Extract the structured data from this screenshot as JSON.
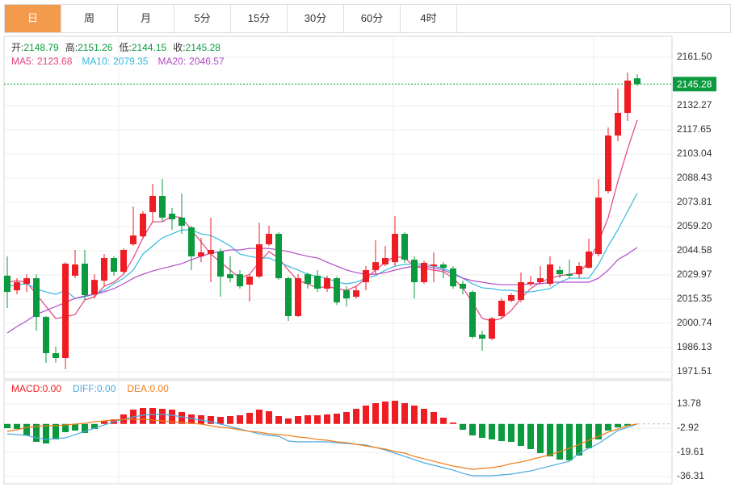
{
  "tabs": {
    "items": [
      "日",
      "周",
      "月",
      "5分",
      "15分",
      "30分",
      "60分",
      "4时"
    ],
    "active": 0
  },
  "chart_data": [
    {
      "type": "candlestick",
      "legend_labels": [
        "开:",
        "高:",
        "低:",
        "收:"
      ],
      "up_color": "#ee1d23",
      "down_color": "#0b9a3e",
      "label_color": "#333333",
      "open": [
        2029.5,
        2020.7,
        2024.6,
        2028.0,
        2004.6,
        1982.7,
        1979.8,
        2029.5,
        2036.8,
        2018.3,
        2026.5,
        2040.2,
        2031.9,
        2048.5,
        2053.3,
        2068.0,
        2077.7,
        2067.0,
        2064.6,
        2058.7,
        2041.2,
        2042.6,
        2044.1,
        2030.4,
        2030.4,
        2024.1,
        2029.0,
        2048.5,
        2054.8,
        2028.0,
        2005.1,
        2030.4,
        2029.5,
        2021.7,
        2028.0,
        2020.7,
        2016.8,
        2025.6,
        2032.9,
        2036.3,
        2037.7,
        2054.8,
        2039.2,
        2025.6,
        2035.3,
        2036.3,
        2033.9,
        2024.6,
        2019.7,
        1993.9,
        1991.5,
        2005.1,
        2014.4,
        2014.9,
        2024.6,
        2025.6,
        2024.6,
        2032.9,
        2030.4,
        2030.4,
        2034.3,
        2042.6,
        2080.6,
        2114.2,
        2127.9,
        2148.79
      ],
      "high": [
        2041.2,
        2028.0,
        2030.4,
        2030.4,
        2005.1,
        1986.6,
        2037.7,
        2045.1,
        2045.1,
        2030.4,
        2042.6,
        2041.2,
        2046.0,
        2071.4,
        2068.4,
        2085.0,
        2087.9,
        2070.4,
        2079.2,
        2059.7,
        2052.4,
        2064.6,
        2046.0,
        2041.2,
        2032.9,
        2030.4,
        2061.6,
        2059.7,
        2055.8,
        2029.0,
        2030.4,
        2031.4,
        2032.9,
        2029.5,
        2029.0,
        2023.1,
        2023.1,
        2035.3,
        2050.9,
        2047.5,
        2065.5,
        2055.8,
        2041.2,
        2038.7,
        2043.6,
        2037.7,
        2035.3,
        2026.5,
        2020.7,
        1996.3,
        2004.6,
        2015.8,
        2018.8,
        2031.4,
        2029.5,
        2035.3,
        2041.2,
        2035.3,
        2039.2,
        2037.7,
        2051.9,
        2087.9,
        2119.1,
        2142.5,
        2152.2,
        2151.26
      ],
      "low": [
        2010.0,
        2018.3,
        2019.7,
        1996.3,
        1976.8,
        1976.8,
        1973.0,
        2028.0,
        2014.9,
        2015.8,
        2023.1,
        2029.5,
        2030.4,
        2047.5,
        2052.4,
        2062.1,
        2062.1,
        2057.2,
        2054.8,
        2032.9,
        2037.7,
        2025.6,
        2016.8,
        2025.6,
        2021.7,
        2013.9,
        2028.0,
        2047.5,
        2027.0,
        2002.2,
        2004.6,
        2021.7,
        2019.7,
        2019.7,
        2011.9,
        2010.9,
        2015.8,
        2020.7,
        2030.4,
        2035.3,
        2035.3,
        2037.3,
        2015.8,
        2024.6,
        2025.6,
        2028.0,
        2021.7,
        2018.3,
        1991.5,
        1984.2,
        1990.5,
        2003.7,
        2013.4,
        2013.4,
        2023.1,
        2024.6,
        2023.1,
        2028.0,
        2028.0,
        2028.0,
        2033.9,
        2041.2,
        2079.2,
        2110.8,
        2123.0,
        2144.15
      ],
      "close": [
        2019.7,
        2025.6,
        2028.0,
        2004.6,
        1982.7,
        1979.8,
        2036.8,
        2036.3,
        2017.8,
        2027.0,
        2040.2,
        2031.9,
        2045.1,
        2053.8,
        2067.0,
        2077.7,
        2064.6,
        2063.6,
        2059.7,
        2041.2,
        2043.6,
        2045.1,
        2029.0,
        2028.0,
        2023.1,
        2029.0,
        2048.5,
        2054.8,
        2028.0,
        2005.1,
        2028.0,
        2024.6,
        2021.7,
        2028.0,
        2013.4,
        2015.8,
        2020.7,
        2032.9,
        2037.7,
        2040.2,
        2054.8,
        2039.2,
        2025.6,
        2037.3,
        2036.3,
        2034.3,
        2023.1,
        2021.7,
        1992.5,
        1991.5,
        2003.7,
        2014.4,
        2017.8,
        2025.6,
        2025.6,
        2028.0,
        2036.3,
        2030.4,
        2029.5,
        2035.3,
        2044.1,
        2076.7,
        2114.2,
        2127.9,
        2147.4,
        2145.28
      ],
      "series": [
        {
          "name": "MA5:",
          "color": "#e5427f",
          "values": [
            2025.6,
            2026.5,
            2025.6,
            2018.3,
            2010.9,
            2003.7,
            2004.6,
            2006.1,
            2014.9,
            2016.8,
            2023.1,
            2025.6,
            2030.4,
            2040.2,
            2052.4,
            2062.1,
            2062.1,
            2065.5,
            2064.6,
            2057.2,
            2049.9,
            2042.6,
            2037.7,
            2032.9,
            2028.0,
            2030.4,
            2037.7,
            2044.1,
            2040.2,
            2032.9,
            2026.5,
            2024.6,
            2022.2,
            2023.1,
            2021.7,
            2020.7,
            2023.1,
            2028.0,
            2032.9,
            2037.7,
            2041.2,
            2040.2,
            2035.3,
            2033.9,
            2032.9,
            2031.9,
            2028.0,
            2022.2,
            2013.4,
            2003.7,
            2002.2,
            2003.7,
            2008.5,
            2015.8,
            2021.7,
            2025.6,
            2028.0,
            2029.5,
            2030.4,
            2031.4,
            2037.7,
            2049.9,
            2064.6,
            2086.5,
            2106.0,
            2123.68
          ]
        },
        {
          "name": "MA10:",
          "color": "#33b9df",
          "values": [
            2023.1,
            2024.1,
            2024.6,
            2021.7,
            2019.7,
            2018.3,
            2020.7,
            2015.8,
            2016.8,
            2018.3,
            2020.7,
            2024.6,
            2028.0,
            2032.9,
            2042.6,
            2047.5,
            2052.4,
            2054.8,
            2057.2,
            2057.2,
            2054.8,
            2053.8,
            2050.9,
            2047.5,
            2042.6,
            2041.2,
            2040.2,
            2040.2,
            2037.7,
            2035.3,
            2032.9,
            2030.4,
            2029.0,
            2028.0,
            2025.6,
            2024.6,
            2025.6,
            2028.0,
            2029.5,
            2032.9,
            2035.3,
            2036.3,
            2036.8,
            2036.3,
            2035.3,
            2033.9,
            2031.4,
            2028.0,
            2024.6,
            2022.2,
            2021.7,
            2020.7,
            2020.7,
            2019.7,
            2019.7,
            2020.7,
            2021.7,
            2025.6,
            2028.0,
            2028.0,
            2028.0,
            2036.3,
            2047.5,
            2057.2,
            2068.4,
            2079.35
          ]
        },
        {
          "name": "MA20:",
          "color": "#b04cc6",
          "values": [
            1994.9,
            1998.8,
            2002.2,
            2006.1,
            2008.5,
            2010.9,
            2013.4,
            2015.8,
            2017.3,
            2018.3,
            2019.7,
            2021.7,
            2024.6,
            2028.0,
            2030.4,
            2032.4,
            2033.9,
            2035.3,
            2036.8,
            2039.2,
            2041.2,
            2043.1,
            2044.1,
            2045.1,
            2045.1,
            2046.0,
            2046.0,
            2046.0,
            2045.1,
            2044.1,
            2042.6,
            2041.2,
            2040.2,
            2037.7,
            2035.3,
            2032.9,
            2031.4,
            2030.4,
            2030.4,
            2031.4,
            2032.9,
            2034.3,
            2035.3,
            2035.3,
            2034.3,
            2032.9,
            2030.4,
            2028.0,
            2026.5,
            2025.6,
            2024.6,
            2024.1,
            2024.1,
            2024.1,
            2024.6,
            2024.6,
            2025.6,
            2025.6,
            2025.6,
            2025.6,
            2025.6,
            2028.0,
            2032.9,
            2039.2,
            2042.6,
            2046.57
          ]
        }
      ],
      "ylim": [
        1967.13,
        2174.17
      ],
      "yticks": [
        {
          "value": 2161.5,
          "label": "2161.50"
        },
        2132.27,
        2117.65,
        2103.04,
        2088.43,
        2073.81,
        {
          "value": 2059.2,
          "label": "2059.20"
        },
        2044.58,
        2029.97,
        2015.35,
        2000.74,
        1986.13,
        1971.51
      ],
      "grid": true,
      "last_price_line": true
    },
    {
      "type": "macd",
      "series": [
        {
          "name": "MACD:",
          "kind": "bar",
          "color": "#ee1d23",
          "down_color": "#0b9a3e",
          "legend_label": "0.00",
          "values": [
            -2.92,
            -3.48,
            -7.93,
            -12.38,
            -13.5,
            -10.71,
            -5.7,
            -4.59,
            -6.26,
            -3.48,
            2.09,
            3.2,
            6.54,
            9.88,
            10.99,
            10.99,
            10.43,
            9.88,
            8.21,
            6.54,
            5.98,
            5.43,
            4.87,
            5.43,
            5.98,
            7.65,
            9.88,
            8.76,
            5.43,
            3.76,
            5.43,
            5.98,
            5.98,
            6.54,
            7.1,
            8.21,
            10.43,
            12.66,
            14.33,
            15.44,
            16.0,
            14.33,
            12.66,
            10.43,
            8.21,
            4.31,
            0.97,
            -4.03,
            -7.93,
            -9.6,
            -10.71,
            -11.83,
            -12.38,
            -15.16,
            -17.39,
            -20.17,
            -22.4,
            -24.62,
            -25.18,
            -21.84,
            -16.83,
            -10.71,
            -4.59,
            -2.37,
            -1.25,
            0
          ]
        },
        {
          "name": "DIFF:",
          "kind": "line",
          "color": "#4aa8e0",
          "legend_label": "0.00",
          "values": [
            -6.82,
            -7.37,
            -7.93,
            -9.6,
            -10.71,
            -10.16,
            -9.6,
            -7.37,
            -5.15,
            -2.92,
            -0.7,
            1.53,
            3.2,
            4.87,
            5.98,
            6.54,
            6.54,
            5.98,
            4.87,
            3.76,
            2.64,
            1.53,
            -0.14,
            -1.81,
            -3.48,
            -5.15,
            -6.82,
            -7.93,
            -8.49,
            -11.83,
            -12.38,
            -12.38,
            -12.38,
            -12.38,
            -12.94,
            -13.5,
            -14.05,
            -14.61,
            -16.28,
            -17.95,
            -20.17,
            -22.4,
            -24.62,
            -26.85,
            -28.52,
            -30.19,
            -31.86,
            -34.09,
            -35.76,
            -35.76,
            -35.76,
            -35.2,
            -34.64,
            -33.53,
            -32.42,
            -30.75,
            -29.08,
            -27.41,
            -25.74,
            -20.17,
            -16.83,
            -13.5,
            -9.04,
            -4.59,
            -2.37,
            0
          ]
        },
        {
          "name": "DEA:",
          "kind": "line",
          "color": "#f07c1b",
          "legend_label": "0.00",
          "values": [
            -5.15,
            -4.03,
            -2.37,
            -1.81,
            -1.25,
            -1.25,
            -0.7,
            -0.14,
            0.42,
            1.53,
            2.09,
            2.64,
            3.2,
            3.2,
            3.2,
            2.64,
            2.09,
            1.53,
            0.97,
            0.42,
            -0.14,
            -1.25,
            -2.37,
            -2.92,
            -4.03,
            -5.15,
            -5.7,
            -6.82,
            -7.37,
            -7.93,
            -9.04,
            -9.6,
            -10.71,
            -11.27,
            -12.38,
            -12.94,
            -14.05,
            -15.16,
            -16.28,
            -17.39,
            -19.06,
            -20.17,
            -22.4,
            -24.07,
            -25.74,
            -27.41,
            -29.08,
            -30.19,
            -31.3,
            -30.75,
            -30.19,
            -29.08,
            -27.41,
            -26.3,
            -24.62,
            -22.95,
            -21.29,
            -19.06,
            -16.83,
            -14.05,
            -11.27,
            -8.49,
            -5.7,
            -3.48,
            -1.25,
            0
          ]
        }
      ],
      "ylim": [
        -41.31,
        29.92
      ],
      "yticks": [
        13.78,
        -2.92,
        -19.61,
        -36.31
      ],
      "grid": true
    }
  ]
}
